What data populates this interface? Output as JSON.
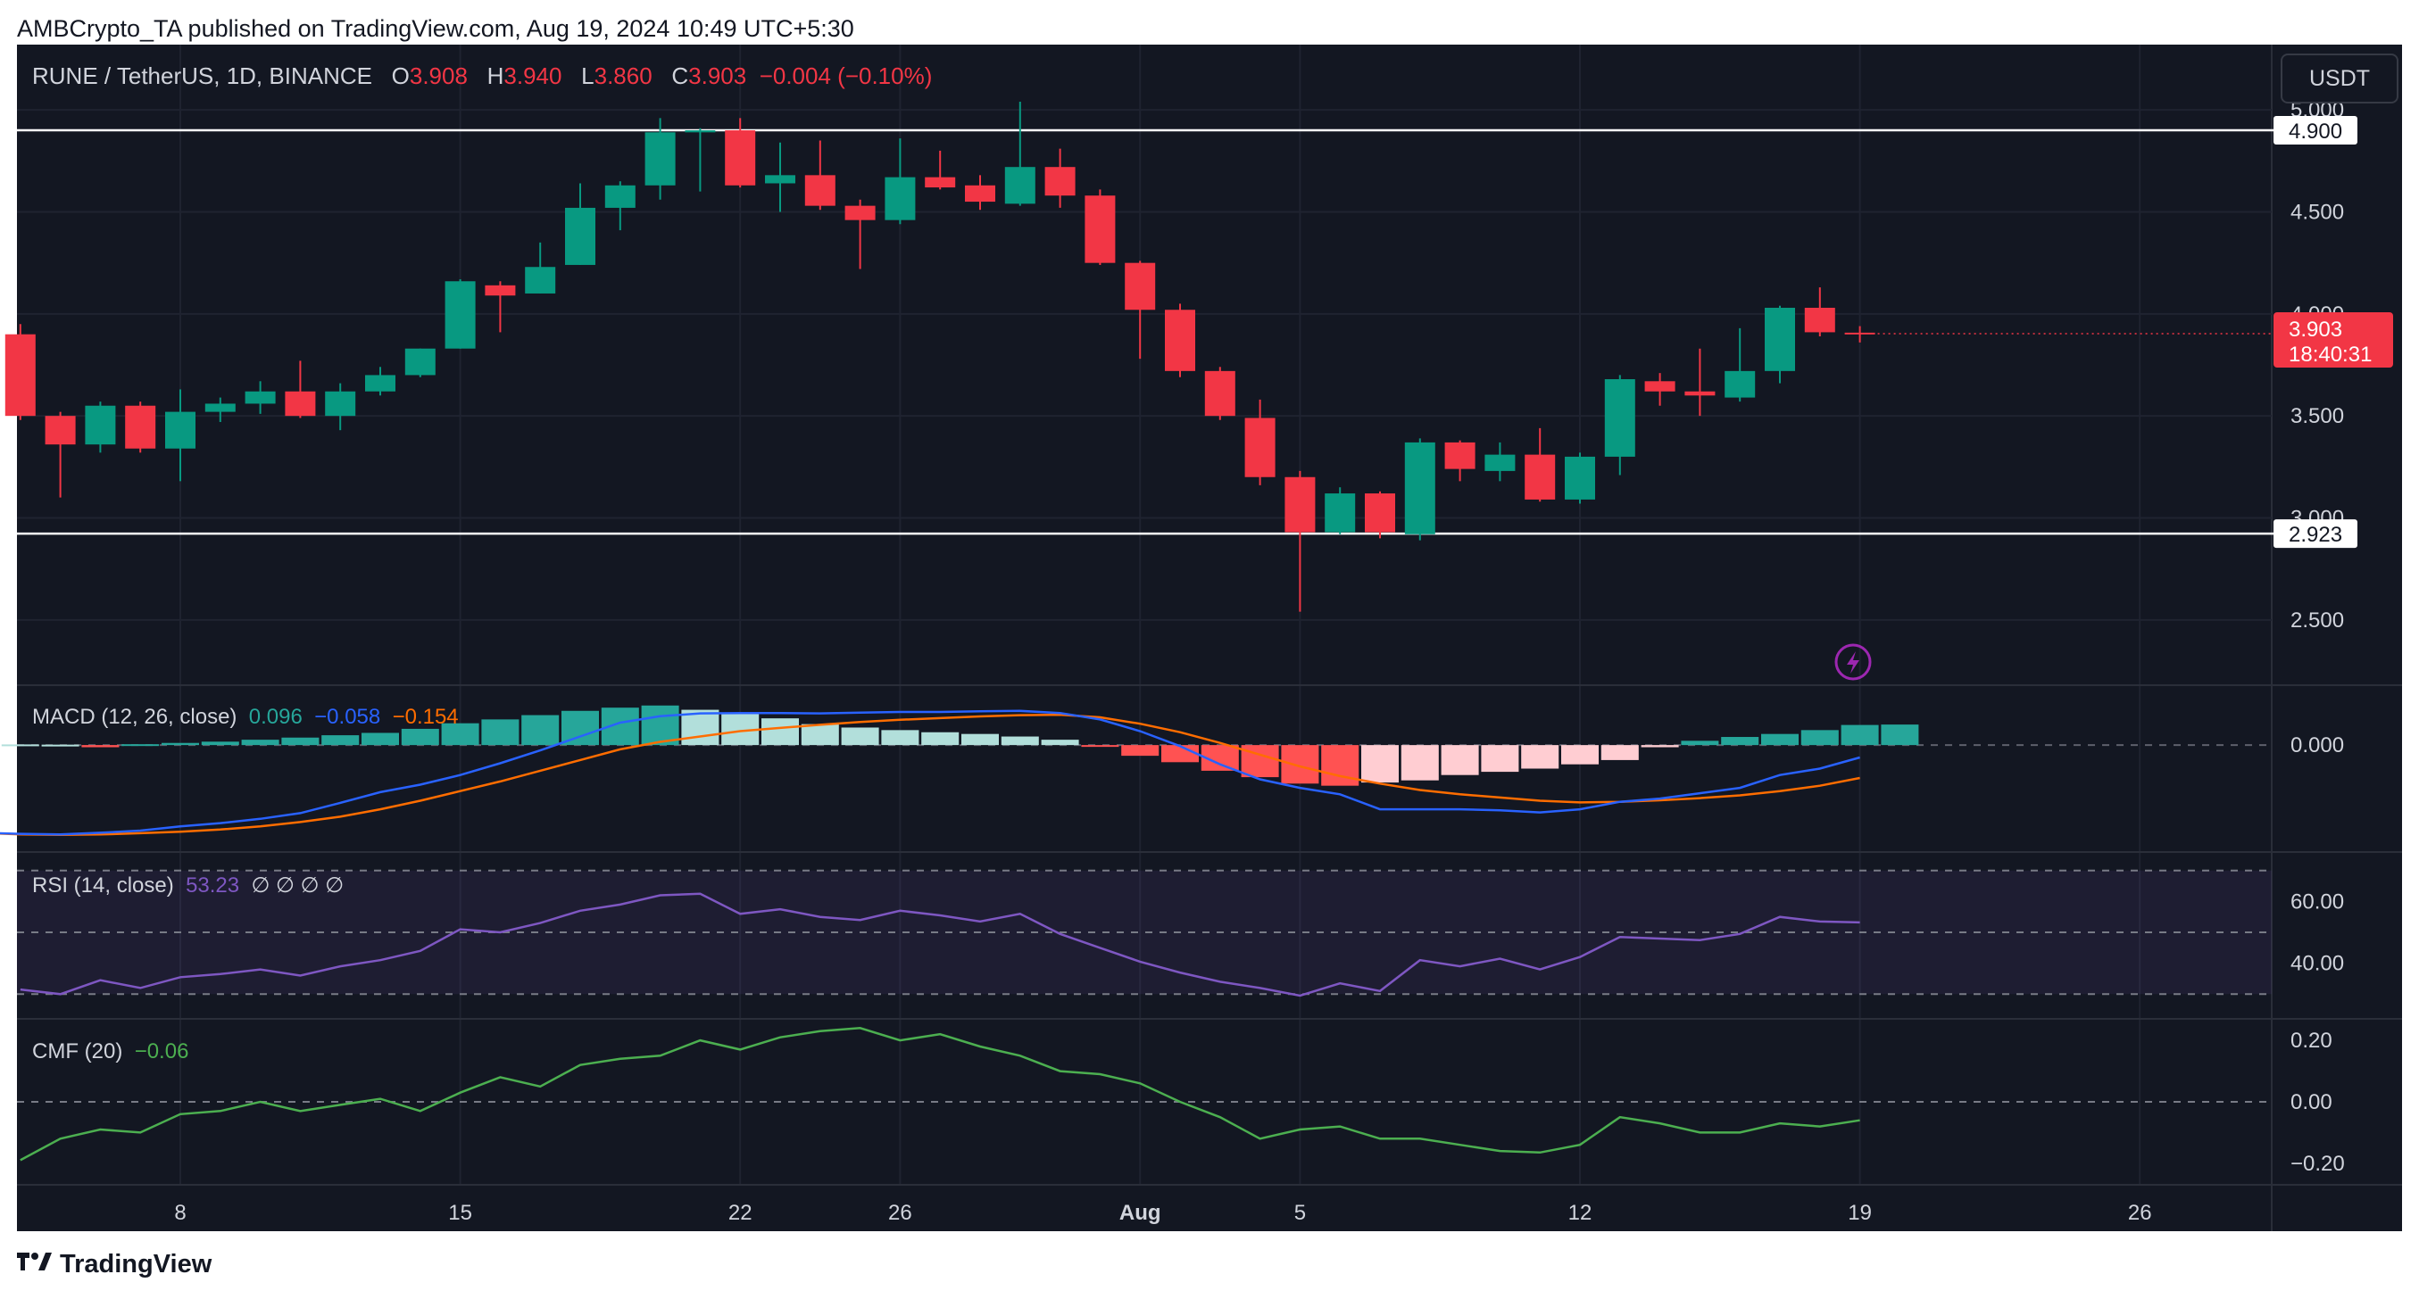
{
  "header": {
    "publisher": "AMBCrypto_TA published on TradingView.com, Aug 19, 2024 10:49 UTC+5:30",
    "symbol": "RUNE / TetherUS, 1D, BINANCE",
    "o_label": "O",
    "o_value": "3.908",
    "h_label": "H",
    "h_value": "3.940",
    "l_label": "L",
    "l_value": "3.860",
    "c_label": "C",
    "c_value": "3.903",
    "change": "−0.004 (−0.10%)",
    "currency_button": "USDT"
  },
  "colors": {
    "background": "#131722",
    "grid": "#1f2330",
    "up": "#089981",
    "down": "#f23645",
    "text": "#d1d4dc",
    "macd_line": "#2962ff",
    "signal_line": "#ff6d00",
    "rsi_line": "#7e57c2",
    "cmf_line": "#4caf50",
    "hist_up_strong": "#26a69a",
    "hist_up_weak": "#b2dfdb",
    "hist_down_strong": "#ff5252",
    "hist_down_weak": "#ffcdd2"
  },
  "chart_data": {
    "type": "candlestick",
    "x_tick_labels": [
      "8",
      "15",
      "22",
      "26",
      "Aug",
      "5",
      "12",
      "19",
      "26"
    ],
    "x_tick_days": [
      8,
      15,
      22,
      26,
      32,
      36,
      43,
      50,
      57
    ],
    "price_axis": {
      "ticks": [
        "2.500",
        "3.000",
        "3.500",
        "4.000",
        "4.500",
        "5.000"
      ],
      "ylim": [
        2.18,
        5.32
      ]
    },
    "horizontal_levels": [
      {
        "label": "4.900",
        "value": 4.9
      },
      {
        "label": "2.923",
        "value": 2.923
      }
    ],
    "last_price": {
      "label": "3.903",
      "countdown": "18:40:31"
    },
    "candles": [
      {
        "day": 4,
        "o": 3.9,
        "h": 3.95,
        "l": 3.48,
        "c": 3.5
      },
      {
        "day": 5,
        "o": 3.5,
        "h": 3.52,
        "l": 3.1,
        "c": 3.36
      },
      {
        "day": 6,
        "o": 3.36,
        "h": 3.57,
        "l": 3.32,
        "c": 3.55
      },
      {
        "day": 7,
        "o": 3.55,
        "h": 3.57,
        "l": 3.32,
        "c": 3.34
      },
      {
        "day": 8,
        "o": 3.34,
        "h": 3.63,
        "l": 3.18,
        "c": 3.52
      },
      {
        "day": 9,
        "o": 3.52,
        "h": 3.59,
        "l": 3.47,
        "c": 3.56
      },
      {
        "day": 10,
        "o": 3.56,
        "h": 3.67,
        "l": 3.51,
        "c": 3.62
      },
      {
        "day": 11,
        "o": 3.62,
        "h": 3.77,
        "l": 3.49,
        "c": 3.5
      },
      {
        "day": 12,
        "o": 3.5,
        "h": 3.66,
        "l": 3.43,
        "c": 3.62
      },
      {
        "day": 13,
        "o": 3.62,
        "h": 3.74,
        "l": 3.6,
        "c": 3.7
      },
      {
        "day": 14,
        "o": 3.7,
        "h": 3.83,
        "l": 3.69,
        "c": 3.83
      },
      {
        "day": 15,
        "o": 3.83,
        "h": 4.17,
        "l": 3.83,
        "c": 4.16
      },
      {
        "day": 16,
        "o": 4.14,
        "h": 4.16,
        "l": 3.91,
        "c": 4.09
      },
      {
        "day": 17,
        "o": 4.1,
        "h": 4.35,
        "l": 4.1,
        "c": 4.23
      },
      {
        "day": 18,
        "o": 4.24,
        "h": 4.64,
        "l": 4.24,
        "c": 4.52
      },
      {
        "day": 19,
        "o": 4.52,
        "h": 4.65,
        "l": 4.41,
        "c": 4.63
      },
      {
        "day": 20,
        "o": 4.63,
        "h": 4.96,
        "l": 4.56,
        "c": 4.89
      },
      {
        "day": 21,
        "o": 4.89,
        "h": 4.91,
        "l": 4.6,
        "c": 4.9
      },
      {
        "day": 22,
        "o": 4.9,
        "h": 4.96,
        "l": 4.62,
        "c": 4.63
      },
      {
        "day": 23,
        "o": 4.64,
        "h": 4.84,
        "l": 4.5,
        "c": 4.68
      },
      {
        "day": 24,
        "o": 4.68,
        "h": 4.85,
        "l": 4.51,
        "c": 4.53
      },
      {
        "day": 25,
        "o": 4.53,
        "h": 4.56,
        "l": 4.22,
        "c": 4.46
      },
      {
        "day": 26,
        "o": 4.46,
        "h": 4.86,
        "l": 4.44,
        "c": 4.67
      },
      {
        "day": 27,
        "o": 4.67,
        "h": 4.8,
        "l": 4.61,
        "c": 4.62
      },
      {
        "day": 28,
        "o": 4.63,
        "h": 4.68,
        "l": 4.51,
        "c": 4.55
      },
      {
        "day": 29,
        "o": 4.54,
        "h": 5.04,
        "l": 4.53,
        "c": 4.72
      },
      {
        "day": 30,
        "o": 4.72,
        "h": 4.81,
        "l": 4.52,
        "c": 4.58
      },
      {
        "day": 31,
        "o": 4.58,
        "h": 4.61,
        "l": 4.24,
        "c": 4.25
      },
      {
        "day": 32,
        "o": 4.25,
        "h": 4.26,
        "l": 3.78,
        "c": 4.02
      },
      {
        "day": 33,
        "o": 4.02,
        "h": 4.05,
        "l": 3.69,
        "c": 3.72
      },
      {
        "day": 34,
        "o": 3.72,
        "h": 3.74,
        "l": 3.48,
        "c": 3.5
      },
      {
        "day": 35,
        "o": 3.49,
        "h": 3.58,
        "l": 3.16,
        "c": 3.2
      },
      {
        "day": 36,
        "o": 3.2,
        "h": 3.23,
        "l": 2.54,
        "c": 2.93
      },
      {
        "day": 37,
        "o": 2.93,
        "h": 3.15,
        "l": 2.92,
        "c": 3.12
      },
      {
        "day": 38,
        "o": 3.12,
        "h": 3.13,
        "l": 2.9,
        "c": 2.93
      },
      {
        "day": 39,
        "o": 2.92,
        "h": 3.39,
        "l": 2.89,
        "c": 3.37
      },
      {
        "day": 40,
        "o": 3.37,
        "h": 3.38,
        "l": 3.18,
        "c": 3.24
      },
      {
        "day": 41,
        "o": 3.23,
        "h": 3.37,
        "l": 3.18,
        "c": 3.31
      },
      {
        "day": 42,
        "o": 3.31,
        "h": 3.44,
        "l": 3.08,
        "c": 3.09
      },
      {
        "day": 43,
        "o": 3.09,
        "h": 3.32,
        "l": 3.07,
        "c": 3.3
      },
      {
        "day": 44,
        "o": 3.3,
        "h": 3.7,
        "l": 3.21,
        "c": 3.68
      },
      {
        "day": 45,
        "o": 3.67,
        "h": 3.71,
        "l": 3.55,
        "c": 3.62
      },
      {
        "day": 46,
        "o": 3.62,
        "h": 3.83,
        "l": 3.5,
        "c": 3.6
      },
      {
        "day": 47,
        "o": 3.59,
        "h": 3.93,
        "l": 3.57,
        "c": 3.72
      },
      {
        "day": 48,
        "o": 3.72,
        "h": 4.04,
        "l": 3.66,
        "c": 4.03
      },
      {
        "day": 49,
        "o": 4.03,
        "h": 4.13,
        "l": 3.89,
        "c": 3.91
      },
      {
        "day": 50,
        "o": 3.908,
        "h": 3.94,
        "l": 3.86,
        "c": 3.903
      }
    ],
    "macd": {
      "label": "MACD (12, 26, close)",
      "values_text": [
        "0.096",
        "−0.058",
        "−0.154"
      ],
      "axis_ticks": [
        "0.000"
      ],
      "ylim": [
        -0.5,
        0.28
      ],
      "histogram": [
        0.006,
        0.003,
        0.002,
        -0.01,
        0.004,
        0.01,
        0.016,
        0.025,
        0.035,
        0.046,
        0.057,
        0.076,
        0.102,
        0.12,
        0.14,
        0.16,
        0.175,
        0.185,
        0.165,
        0.145,
        0.125,
        0.098,
        0.082,
        0.07,
        0.06,
        0.052,
        0.04,
        0.025,
        -0.008,
        -0.05,
        -0.08,
        -0.12,
        -0.15,
        -0.18,
        -0.19,
        -0.175,
        -0.165,
        -0.14,
        -0.125,
        -0.11,
        -0.09,
        -0.07,
        -0.01,
        0.02,
        0.038,
        0.052,
        0.07,
        0.094,
        0.096
      ],
      "macd_line": [
        -0.39,
        -0.405,
        -0.41,
        -0.415,
        -0.418,
        -0.41,
        -0.4,
        -0.38,
        -0.365,
        -0.345,
        -0.318,
        -0.27,
        -0.22,
        -0.185,
        -0.14,
        -0.085,
        -0.025,
        0.04,
        0.105,
        0.135,
        0.148,
        0.15,
        0.15,
        0.148,
        0.152,
        0.155,
        0.155,
        0.158,
        0.16,
        0.15,
        0.12,
        0.065,
        -0.005,
        -0.09,
        -0.16,
        -0.2,
        -0.23,
        -0.3,
        -0.3,
        -0.3,
        -0.305,
        -0.315,
        -0.3,
        -0.265,
        -0.25,
        -0.225,
        -0.2,
        -0.14,
        -0.11,
        -0.058
      ],
      "signal_line": [
        -0.4,
        -0.405,
        -0.41,
        -0.418,
        -0.42,
        -0.418,
        -0.412,
        -0.405,
        -0.395,
        -0.38,
        -0.36,
        -0.335,
        -0.3,
        -0.26,
        -0.215,
        -0.17,
        -0.12,
        -0.07,
        -0.02,
        0.015,
        0.04,
        0.065,
        0.08,
        0.095,
        0.108,
        0.118,
        0.126,
        0.134,
        0.14,
        0.142,
        0.13,
        0.1,
        0.06,
        0.01,
        -0.045,
        -0.1,
        -0.145,
        -0.18,
        -0.21,
        -0.23,
        -0.245,
        -0.26,
        -0.268,
        -0.265,
        -0.258,
        -0.248,
        -0.235,
        -0.215,
        -0.19,
        -0.154
      ]
    },
    "rsi": {
      "label": "RSI (14, close)",
      "value_text": "53.23",
      "extra_text": "∅ ∅ ∅ ∅",
      "axis_ticks": [
        "40.00",
        "60.00"
      ],
      "ylim": [
        22,
        76
      ],
      "band": [
        30,
        70
      ],
      "mid": 50,
      "values": [
        31.5,
        30,
        34.5,
        32,
        35.5,
        36.5,
        38,
        36,
        39,
        41,
        44,
        51,
        50,
        53,
        57,
        59,
        62,
        62.5,
        56,
        57.5,
        55,
        54,
        57,
        55.5,
        53.5,
        56,
        49.5,
        45,
        40.5,
        37,
        34,
        32,
        29.5,
        33.5,
        31,
        41,
        39,
        41.5,
        38,
        42,
        48.5,
        48,
        47.5,
        49.5,
        55,
        53.5,
        53.23
      ]
    },
    "cmf": {
      "label": "CMF (20)",
      "value_text": "−0.06",
      "axis_ticks": [
        "−0.20",
        "0.00",
        "0.20"
      ],
      "ylim": [
        -0.27,
        0.27
      ],
      "zero": 0,
      "values": [
        -0.19,
        -0.12,
        -0.09,
        -0.1,
        -0.04,
        -0.03,
        0.0,
        -0.03,
        -0.01,
        0.01,
        -0.03,
        0.03,
        0.08,
        0.05,
        0.12,
        0.14,
        0.15,
        0.2,
        0.17,
        0.21,
        0.23,
        0.24,
        0.2,
        0.22,
        0.18,
        0.15,
        0.1,
        0.09,
        0.06,
        0.0,
        -0.05,
        -0.12,
        -0.09,
        -0.08,
        -0.12,
        -0.12,
        -0.14,
        -0.16,
        -0.165,
        -0.14,
        -0.05,
        -0.07,
        -0.1,
        -0.1,
        -0.07,
        -0.08,
        -0.06
      ]
    }
  },
  "footer": {
    "brand": "TradingView"
  }
}
